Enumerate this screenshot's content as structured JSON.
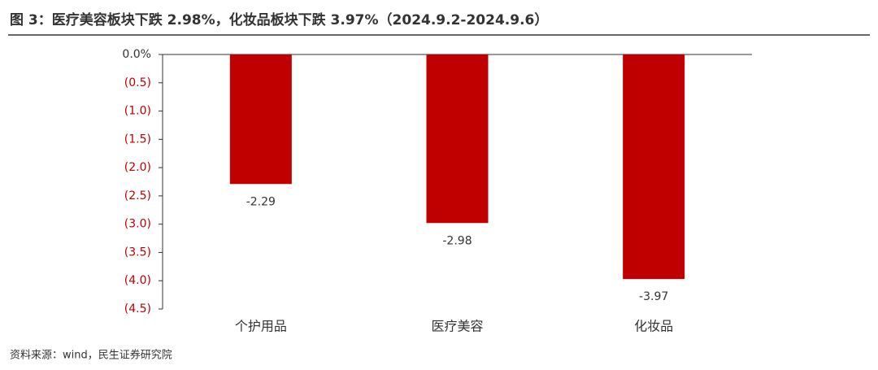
{
  "chart_data": {
    "type": "bar",
    "title": "图 3：医疗美容板块下跌 2.98%，化妆品板块下跌 3.97%（2024.9.2-2024.9.6）",
    "categories": [
      "个护用品",
      "医疗美容",
      "化妆品"
    ],
    "values": [
      -2.29,
      -2.98,
      -3.97
    ],
    "color": "#c00000",
    "ylim": [
      -4.5,
      0
    ],
    "yticks": [
      {
        "value": 0,
        "label": "0.0%"
      },
      {
        "value": -0.5,
        "label": "(0.5)"
      },
      {
        "value": -1.0,
        "label": "(1.0)"
      },
      {
        "value": -1.5,
        "label": "(1.5)"
      },
      {
        "value": -2.0,
        "label": "(2.0)"
      },
      {
        "value": -2.5,
        "label": "(2.5)"
      },
      {
        "value": -3.0,
        "label": "(3.0)"
      },
      {
        "value": -3.5,
        "label": "(3.5)"
      },
      {
        "value": -4.0,
        "label": "(4.0)"
      },
      {
        "value": -4.5,
        "label": "(4.5)"
      }
    ],
    "grid": false,
    "source": "资料来源：wind，民生证券研究院"
  }
}
